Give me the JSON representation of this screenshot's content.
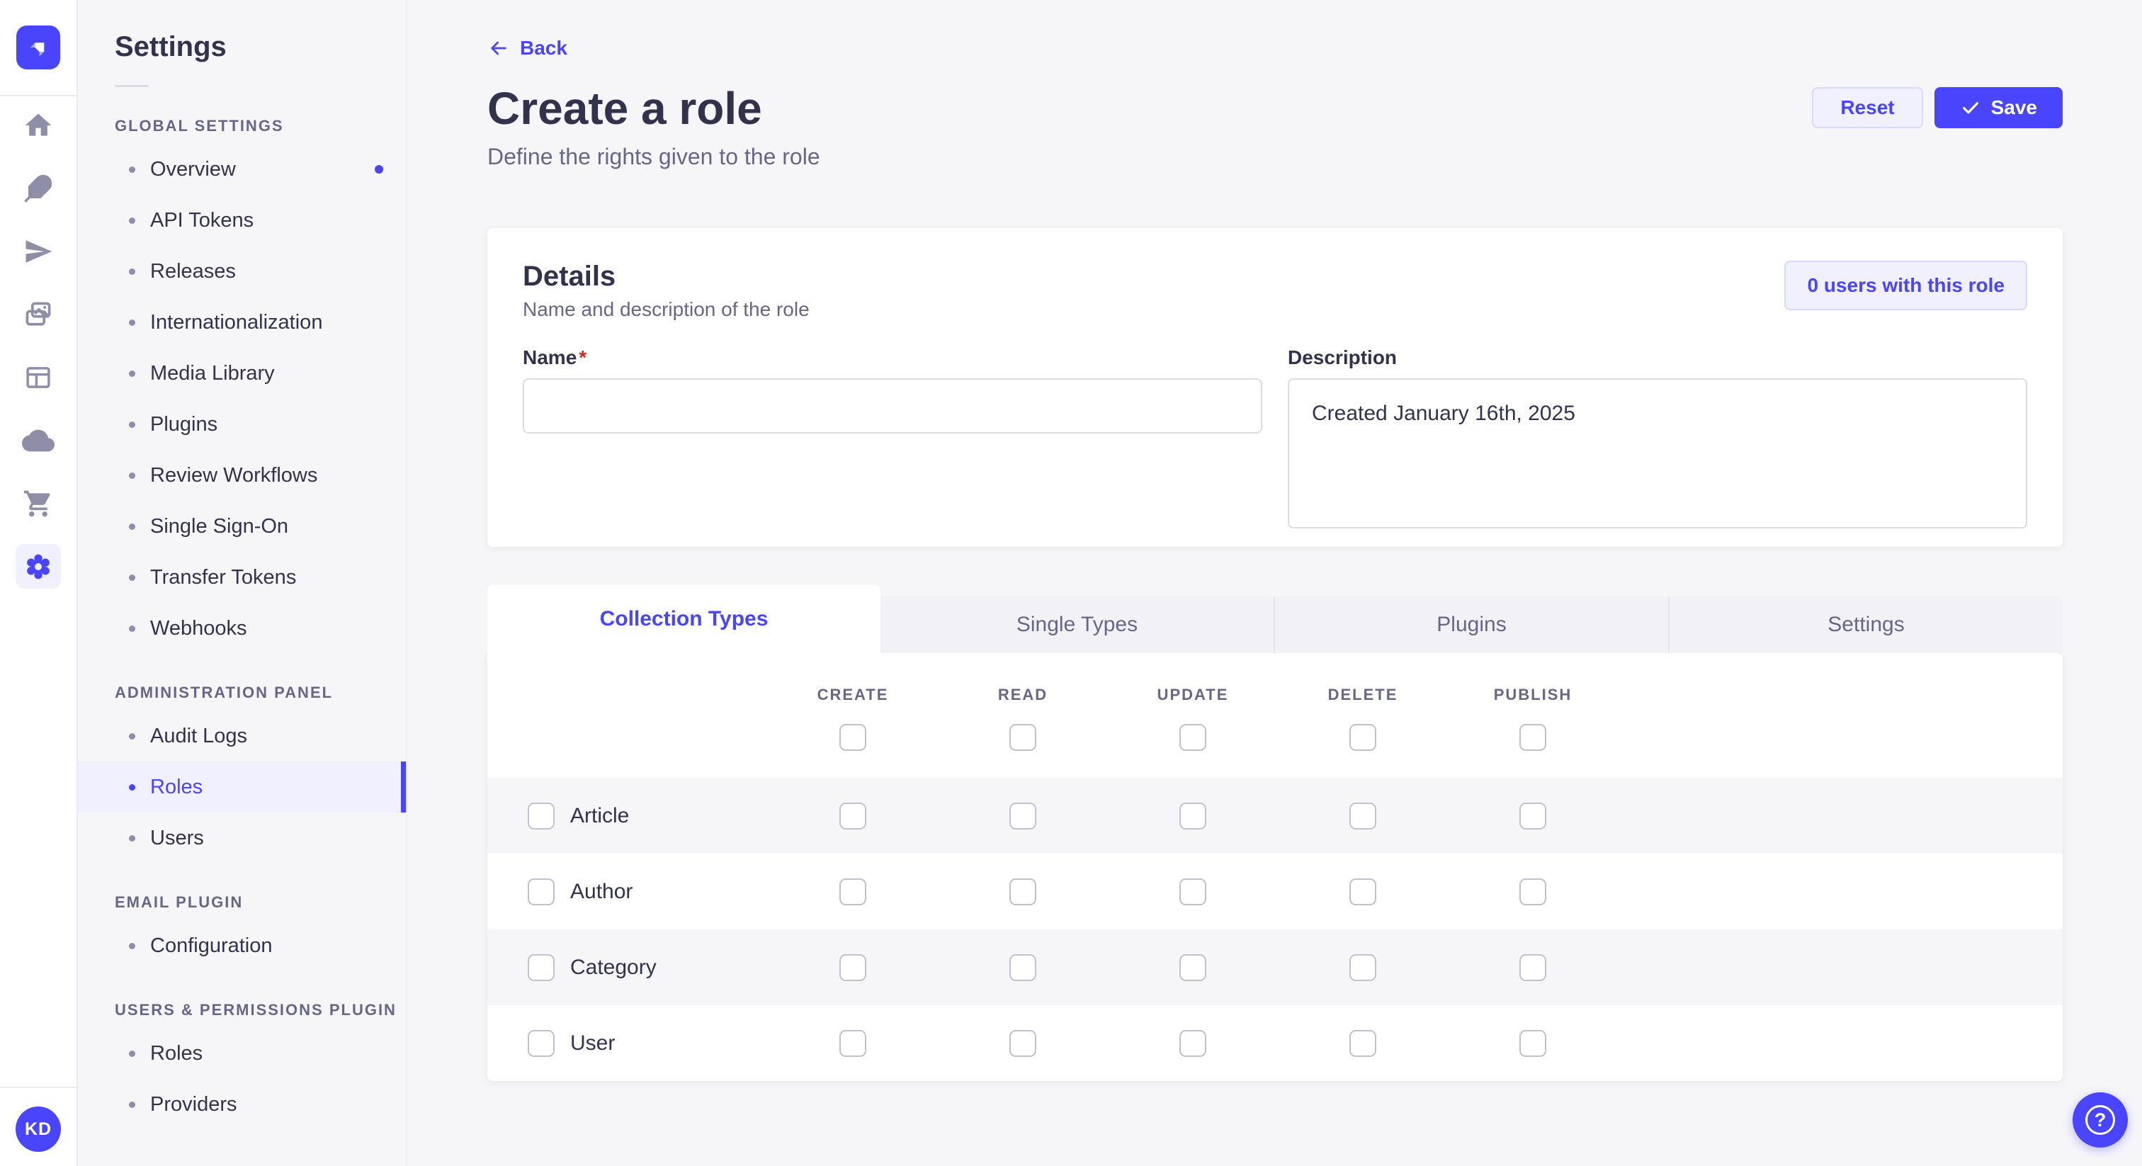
{
  "colors": {
    "primary": "#4945ff",
    "primary_light": "#f0f0ff",
    "primary_border": "#d9d8ff",
    "text_dark": "#32324d",
    "text_muted": "#666687",
    "page_bg": "#f6f6f9",
    "panel_bg": "#ffffff",
    "border": "#eaeaef",
    "input_border": "#dcdce4",
    "checkbox_border": "#c0c0cf",
    "required_mark_color": "#d02b20"
  },
  "nav_rail": {
    "logo_icon": "strapi-logo-icon",
    "icons": [
      "home-icon",
      "feather-icon",
      "paper-plane-icon",
      "media-library-icon",
      "layout-icon",
      "cloud-icon",
      "marketplace-cart-icon",
      "settings-gear-icon"
    ],
    "active_icon": "settings-gear-icon",
    "avatar_initials": "KD"
  },
  "subnav": {
    "title": "Settings",
    "sections": [
      {
        "label": "GLOBAL SETTINGS",
        "items": [
          {
            "label": "Overview",
            "dot": true
          },
          {
            "label": "API Tokens"
          },
          {
            "label": "Releases"
          },
          {
            "label": "Internationalization"
          },
          {
            "label": "Media Library"
          },
          {
            "label": "Plugins"
          },
          {
            "label": "Review Workflows"
          },
          {
            "label": "Single Sign-On"
          },
          {
            "label": "Transfer Tokens"
          },
          {
            "label": "Webhooks"
          }
        ]
      },
      {
        "label": "ADMINISTRATION PANEL",
        "items": [
          {
            "label": "Audit Logs"
          },
          {
            "label": "Roles",
            "active": true
          },
          {
            "label": "Users"
          }
        ]
      },
      {
        "label": "EMAIL PLUGIN",
        "items": [
          {
            "label": "Configuration"
          }
        ]
      },
      {
        "label": "USERS & PERMISSIONS PLUGIN",
        "items": [
          {
            "label": "Roles"
          },
          {
            "label": "Providers"
          }
        ]
      }
    ]
  },
  "header": {
    "back_label": "Back",
    "title": "Create a role",
    "subtitle": "Define the rights given to the role",
    "reset_label": "Reset",
    "save_label": "Save"
  },
  "details": {
    "title": "Details",
    "subtitle": "Name and description of the role",
    "users_count_label": "0 users with this role",
    "name_label": "Name",
    "name_required_mark": "*",
    "name_value": "",
    "description_label": "Description",
    "description_value": "Created January 16th, 2025"
  },
  "permissions": {
    "tabs": [
      {
        "label": "Collection Types",
        "active": true
      },
      {
        "label": "Single Types"
      },
      {
        "label": "Plugins"
      },
      {
        "label": "Settings"
      }
    ],
    "columns": [
      "CREATE",
      "READ",
      "UPDATE",
      "DELETE",
      "PUBLISH"
    ],
    "rows": [
      {
        "label": "Article"
      },
      {
        "label": "Author"
      },
      {
        "label": "Category"
      },
      {
        "label": "User"
      }
    ],
    "checkbox_state": "unchecked"
  },
  "help_button": {
    "glyph": "?",
    "icon": "question-mark-icon"
  }
}
